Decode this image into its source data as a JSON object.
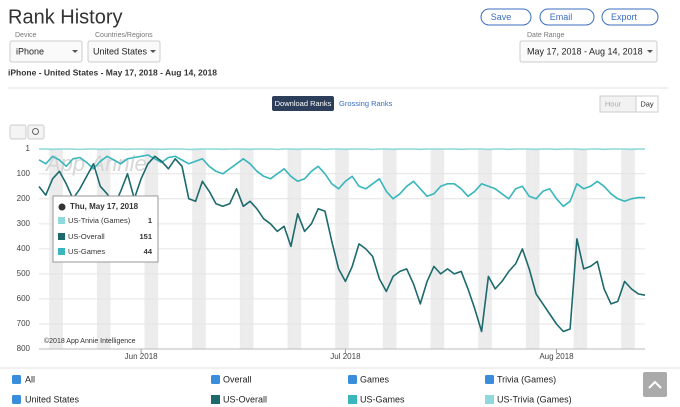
{
  "header": {
    "title": "Rank History",
    "buttons": [
      "Save",
      "Email",
      "Export"
    ]
  },
  "filters": {
    "device": {
      "label": "Device",
      "value": "iPhone"
    },
    "country": {
      "label": "Countries/Regions",
      "value": "United States"
    },
    "date_range": {
      "label": "Date Range",
      "value": "May 17, 2018 - Aug 14, 2018"
    }
  },
  "summary": "iPhone - United States - May 17, 2018 - Aug 14, 2018",
  "rank_tabs": [
    "Download Ranks",
    "Grossing Ranks"
  ],
  "granularity": [
    "Hour",
    "Day"
  ],
  "chart_data": {
    "type": "line",
    "y_reversed": true,
    "grid": true,
    "watermark": "App Annie",
    "credit": "©2018 App Annie Intelligence",
    "tooltip_date": "Thu, May 17, 2018",
    "x": [
      "2018-05-17",
      "2018-05-18",
      "2018-05-19",
      "2018-05-20",
      "2018-05-21",
      "2018-05-22",
      "2018-05-23",
      "2018-05-24",
      "2018-05-25",
      "2018-05-26",
      "2018-05-27",
      "2018-05-28",
      "2018-05-29",
      "2018-05-30",
      "2018-05-31",
      "2018-06-01",
      "2018-06-02",
      "2018-06-03",
      "2018-06-04",
      "2018-06-05",
      "2018-06-06",
      "2018-06-07",
      "2018-06-08",
      "2018-06-09",
      "2018-06-10",
      "2018-06-11",
      "2018-06-12",
      "2018-06-13",
      "2018-06-14",
      "2018-06-15",
      "2018-06-16",
      "2018-06-17",
      "2018-06-18",
      "2018-06-19",
      "2018-06-20",
      "2018-06-21",
      "2018-06-22",
      "2018-06-23",
      "2018-06-24",
      "2018-06-25",
      "2018-06-26",
      "2018-06-27",
      "2018-06-28",
      "2018-06-29",
      "2018-06-30",
      "2018-07-01",
      "2018-07-02",
      "2018-07-03",
      "2018-07-04",
      "2018-07-05",
      "2018-07-06",
      "2018-07-07",
      "2018-07-08",
      "2018-07-09",
      "2018-07-10",
      "2018-07-11",
      "2018-07-12",
      "2018-07-13",
      "2018-07-14",
      "2018-07-15",
      "2018-07-16",
      "2018-07-17",
      "2018-07-18",
      "2018-07-19",
      "2018-07-20",
      "2018-07-21",
      "2018-07-22",
      "2018-07-23",
      "2018-07-24",
      "2018-07-25",
      "2018-07-26",
      "2018-07-27",
      "2018-07-28",
      "2018-07-29",
      "2018-07-30",
      "2018-07-31",
      "2018-08-01",
      "2018-08-02",
      "2018-08-03",
      "2018-08-04",
      "2018-08-05",
      "2018-08-06",
      "2018-08-07",
      "2018-08-08",
      "2018-08-09",
      "2018-08-10",
      "2018-08-11",
      "2018-08-12",
      "2018-08-13",
      "2018-08-14"
    ],
    "xticks": [
      {
        "value": "2018-06-01",
        "label": "Jun 2018"
      },
      {
        "value": "2018-07-01",
        "label": "Jul 2018"
      },
      {
        "value": "2018-08-01",
        "label": "Aug 2018"
      }
    ],
    "ylim": [
      1,
      800
    ],
    "yticks": [
      1,
      100,
      200,
      300,
      400,
      500,
      600,
      700,
      800
    ],
    "series": [
      {
        "name": "US-Overall",
        "color": "#1d6a6d",
        "values": [
          151,
          185,
          120,
          90,
          140,
          200,
          160,
          110,
          60,
          150,
          180,
          230,
          170,
          100,
          200,
          120,
          60,
          30,
          50,
          80,
          40,
          70,
          200,
          210,
          130,
          170,
          220,
          230,
          220,
          160,
          230,
          210,
          240,
          280,
          300,
          330,
          310,
          390,
          260,
          330,
          300,
          240,
          250,
          370,
          480,
          530,
          470,
          380,
          400,
          430,
          520,
          570,
          510,
          490,
          480,
          540,
          620,
          530,
          470,
          500,
          480,
          500,
          490,
          560,
          640,
          730,
          510,
          560,
          530,
          490,
          460,
          400,
          480,
          580,
          620,
          660,
          700,
          730,
          720,
          360,
          480,
          470,
          450,
          560,
          620,
          610,
          530,
          560,
          580,
          585
        ]
      },
      {
        "name": "US-Games",
        "color": "#3ab7bc",
        "values": [
          44,
          60,
          30,
          45,
          70,
          40,
          35,
          55,
          80,
          50,
          30,
          45,
          60,
          40,
          35,
          30,
          25,
          40,
          55,
          35,
          30,
          45,
          60,
          50,
          40,
          70,
          90,
          100,
          80,
          60,
          40,
          60,
          90,
          110,
          120,
          100,
          80,
          110,
          130,
          120,
          90,
          70,
          100,
          140,
          160,
          130,
          110,
          150,
          160,
          140,
          120,
          170,
          200,
          180,
          150,
          130,
          160,
          190,
          180,
          150,
          140,
          140,
          160,
          190,
          170,
          140,
          150,
          160,
          180,
          200,
          160,
          150,
          190,
          200,
          170,
          160,
          200,
          230,
          210,
          140,
          160,
          150,
          130,
          150,
          180,
          200,
          210,
          200,
          195,
          195
        ]
      },
      {
        "name": "US-Trivia (Games)",
        "color": "#8fd8db",
        "values": [
          1,
          1,
          2,
          1,
          1,
          1,
          3,
          1,
          1,
          2,
          1,
          1,
          1,
          2,
          1,
          1,
          1,
          1,
          2,
          1,
          1,
          1,
          3,
          2,
          1,
          1,
          1,
          2,
          1,
          1,
          1,
          2,
          1,
          1,
          1,
          3,
          1,
          1,
          2,
          1,
          1,
          1,
          2,
          1,
          1,
          2,
          1,
          1,
          1,
          3,
          1,
          1,
          2,
          1,
          1,
          1,
          2,
          1,
          1,
          1,
          1,
          1,
          2,
          1,
          1,
          1,
          3,
          1,
          1,
          2,
          1,
          1,
          1,
          2,
          1,
          1,
          2,
          1,
          1,
          1,
          3,
          1,
          1,
          2,
          1,
          1,
          1,
          2,
          1,
          1
        ]
      }
    ]
  },
  "legend_filters": {
    "groups": [
      "All",
      "Overall",
      "Games",
      "Trivia (Games)"
    ],
    "countries": [
      "United States"
    ]
  }
}
